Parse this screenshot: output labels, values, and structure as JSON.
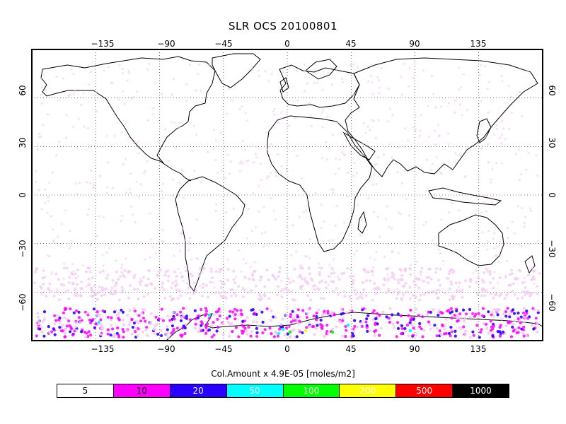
{
  "title": "SLR OCS 20100801",
  "map": {
    "lon_ticks": [
      -135,
      -90,
      -45,
      0,
      45,
      90,
      135
    ],
    "lat_ticks": [
      60,
      30,
      0,
      -30,
      -60
    ],
    "lon_labels": [
      "−135",
      "−90",
      "−45",
      "0",
      "45",
      "90",
      "135"
    ],
    "lat_labels": [
      "60",
      "30",
      "0",
      "−30",
      "−60"
    ],
    "lon_range": [
      -180,
      180
    ],
    "lat_range": [
      -90,
      90
    ],
    "gridlines": "dotted",
    "projection": "equirectangular"
  },
  "legend": {
    "caption": "Col.Amount x  4.9E-05 [moles/m2]",
    "items": [
      {
        "label": "5",
        "color": "#ffffff",
        "text_color": "#000000"
      },
      {
        "label": "10",
        "color": "#ff00ff",
        "text_color": "#000000"
      },
      {
        "label": "20",
        "color": "#2a00ff",
        "text_color": "#ffffff"
      },
      {
        "label": "50",
        "color": "#00ffff",
        "text_color": "#ffffff"
      },
      {
        "label": "100",
        "color": "#00ff00",
        "text_color": "#ffffff"
      },
      {
        "label": "200",
        "color": "#ffff00",
        "text_color": "#ffffff"
      },
      {
        "label": "500",
        "color": "#ff0000",
        "text_color": "#ffffff"
      },
      {
        "label": "1000",
        "color": "#000000",
        "text_color": "#ffffff"
      }
    ]
  }
}
